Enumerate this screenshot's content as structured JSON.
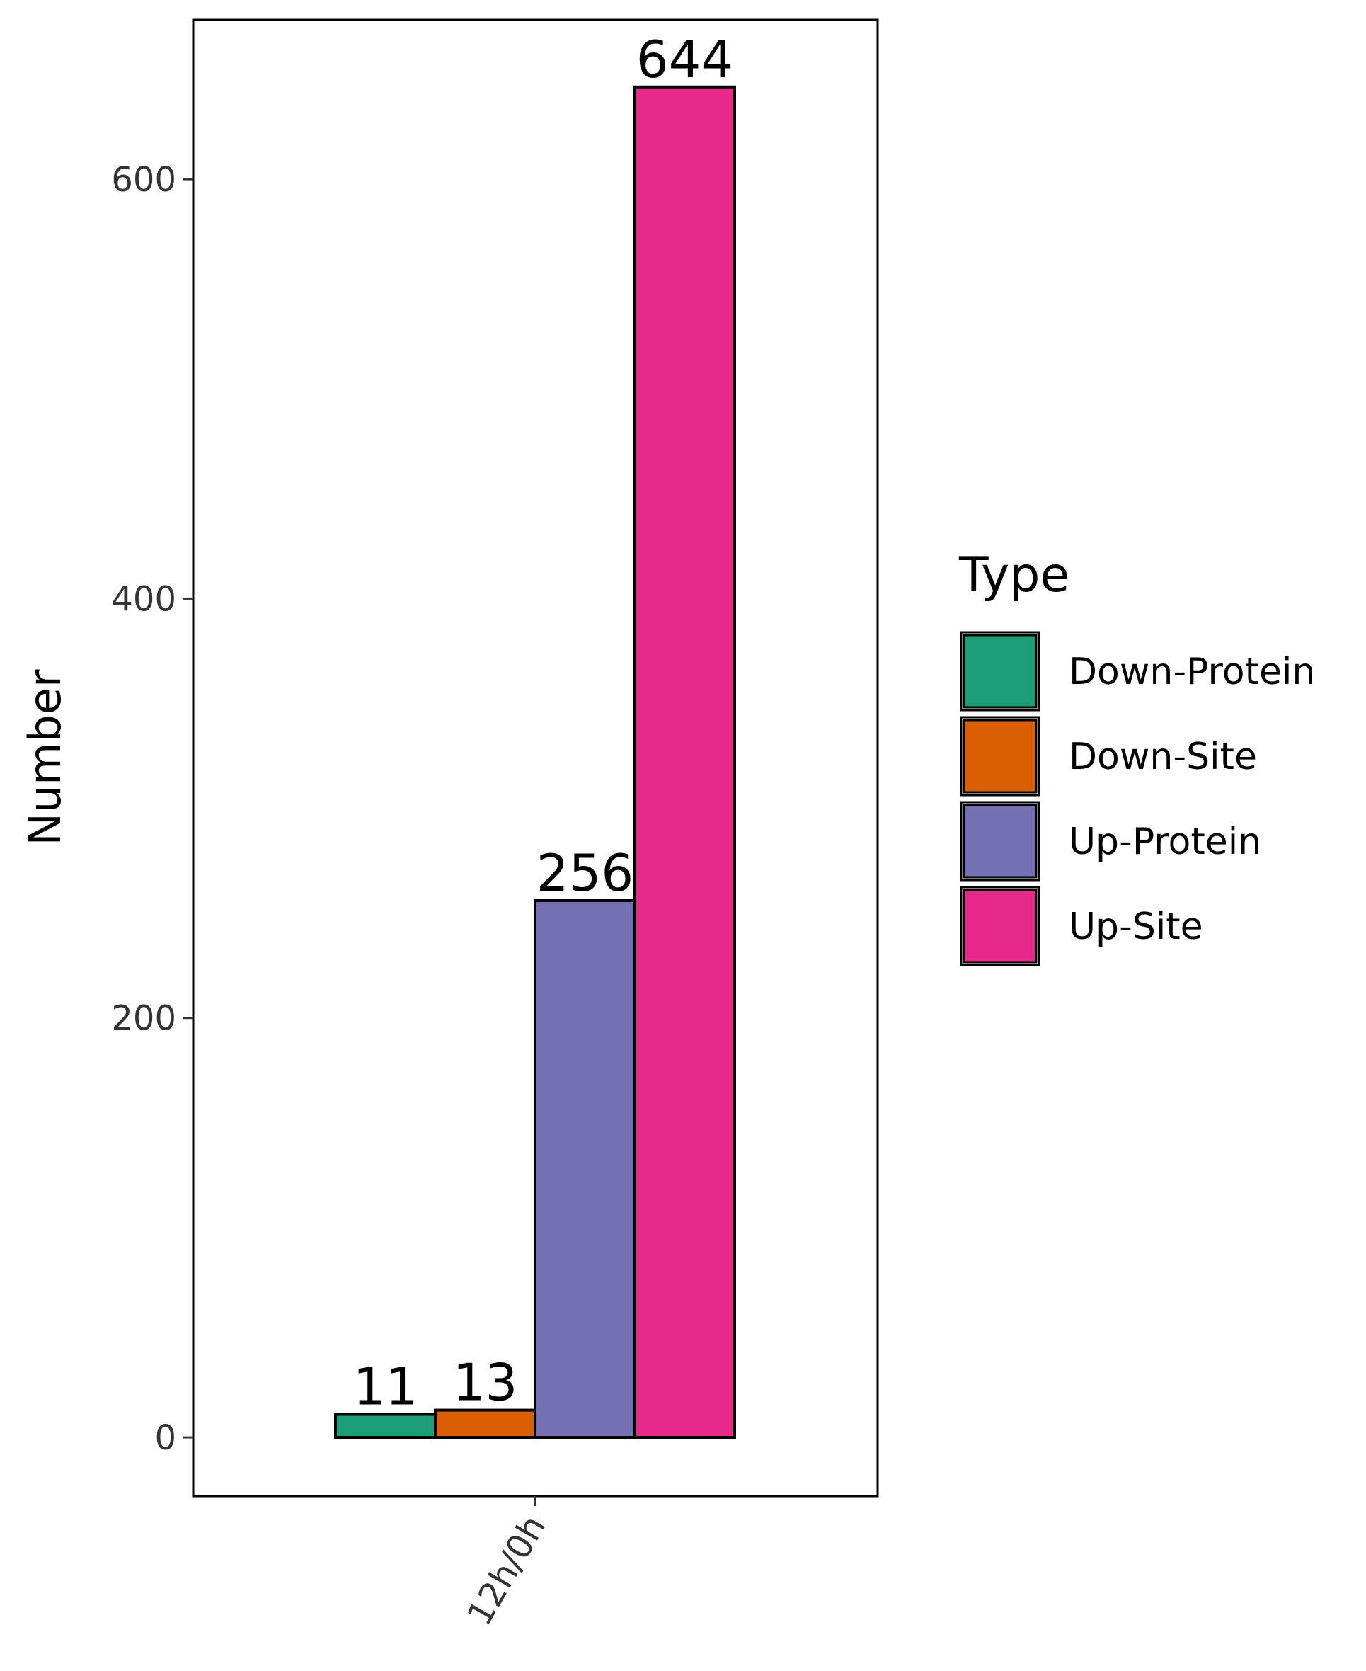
{
  "chart_data": {
    "type": "bar",
    "categories": [
      "12h/0h"
    ],
    "series": [
      {
        "name": "Down-Protein",
        "values": [
          11
        ],
        "color": "#1B9E77"
      },
      {
        "name": "Down-Site",
        "values": [
          13
        ],
        "color": "#D95F02"
      },
      {
        "name": "Up-Protein",
        "values": [
          256
        ],
        "color": "#7570B3"
      },
      {
        "name": "Up-Site",
        "values": [
          644
        ],
        "color": "#E7298A"
      }
    ],
    "data_labels": [
      "11",
      "13",
      "256",
      "644"
    ],
    "ylabel": "Number",
    "xlabel": "",
    "ylim": [
      -28,
      676
    ],
    "yticks": [
      0,
      200,
      400,
      600
    ],
    "ytick_labels": [
      "0",
      "200",
      "400",
      "600"
    ],
    "grid": false,
    "legend": {
      "title": "Type",
      "position": "right"
    }
  }
}
